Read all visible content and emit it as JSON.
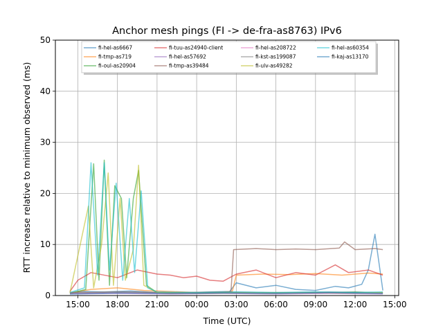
{
  "chart_data": {
    "type": "line",
    "title": "Anchor mesh pings (FI -> de-fra-as8763) IPv6",
    "xlabel": "Time (UTC)",
    "ylabel": "RTT increase relative to minimum observed (ms)",
    "xlim": [
      13.3,
      39.3
    ],
    "ylim": [
      0,
      50
    ],
    "x_ticks": [
      {
        "value": 15,
        "label": "15:00"
      },
      {
        "value": 18,
        "label": "18:00"
      },
      {
        "value": 21,
        "label": "21:00"
      },
      {
        "value": 24,
        "label": "00:00"
      },
      {
        "value": 27,
        "label": "03:00"
      },
      {
        "value": 30,
        "label": "06:00"
      },
      {
        "value": 33,
        "label": "09:00"
      },
      {
        "value": 36,
        "label": "12:00"
      },
      {
        "value": 39,
        "label": "15:00"
      }
    ],
    "y_ticks": [
      0,
      10,
      20,
      30,
      40,
      50
    ],
    "grid": true,
    "legend_position": "top",
    "series": [
      {
        "name": "fi-hel-as6667",
        "color": "#1f77b4",
        "x": [
          14.4,
          15.5,
          17.0,
          19.0,
          21.0,
          23.0,
          25.0,
          26.5,
          27.0,
          28.5,
          30.0,
          31.5,
          33.0,
          34.5,
          35.5,
          36.5,
          37.0,
          37.5,
          38.1
        ],
        "y": [
          0.6,
          0.8,
          0.7,
          0.9,
          0.6,
          0.5,
          0.7,
          0.8,
          2.5,
          1.5,
          2.0,
          1.2,
          1.0,
          1.8,
          1.5,
          2.2,
          5.0,
          12.0,
          1.0
        ]
      },
      {
        "name": "fi-tmp-as719",
        "color": "#ff7f0e",
        "x": [
          14.4,
          16.0,
          18.0,
          20.0,
          22.0,
          24.0,
          26.0,
          26.7,
          27.0,
          29.0,
          31.0,
          33.0,
          35.0,
          37.0,
          38.1
        ],
        "y": [
          0.5,
          1.2,
          1.5,
          1.0,
          0.8,
          0.6,
          0.7,
          0.8,
          4.0,
          4.2,
          4.1,
          4.3,
          4.0,
          4.4,
          4.2
        ]
      },
      {
        "name": "fi-oul-as20904",
        "color": "#2ca02c",
        "x": [
          14.4,
          15.6,
          16.2,
          16.6,
          17.0,
          17.4,
          17.8,
          18.3,
          18.7,
          19.2,
          19.6,
          20.2,
          21.0,
          24.0,
          27.0,
          30.0,
          33.0,
          36.0,
          38.1
        ],
        "y": [
          0.4,
          1.2,
          25.8,
          3.0,
          26.5,
          2.0,
          21.5,
          19.0,
          3.5,
          19.0,
          24.5,
          2.0,
          0.6,
          0.4,
          0.5,
          0.6,
          0.5,
          0.7,
          0.5
        ]
      },
      {
        "name": "fi-tuu-as24940-client",
        "color": "#d62728",
        "x": [
          14.4,
          15.0,
          16.0,
          18.0,
          19.5,
          21.0,
          22.0,
          23.0,
          24.0,
          25.0,
          26.0,
          27.0,
          28.5,
          30.0,
          31.5,
          33.0,
          34.5,
          35.5,
          37.0,
          38.1
        ],
        "y": [
          0.8,
          3.0,
          4.5,
          3.5,
          5.0,
          4.2,
          4.0,
          3.5,
          3.8,
          3.0,
          2.8,
          4.2,
          5.0,
          3.5,
          4.5,
          4.0,
          6.0,
          4.5,
          5.0,
          4.0
        ]
      },
      {
        "name": "fi-hel-as57692",
        "color": "#9467bd",
        "x": [
          14.4,
          18.0,
          22.0,
          26.0,
          30.0,
          34.0,
          38.1
        ],
        "y": [
          0.3,
          0.4,
          0.3,
          0.4,
          0.3,
          0.4,
          0.3
        ]
      },
      {
        "name": "fi-tmp-as39484",
        "color": "#8c564b",
        "x": [
          14.4,
          18.0,
          22.0,
          26.0,
          26.6,
          26.8,
          28.5,
          30.0,
          31.5,
          33.0,
          34.8,
          35.2,
          36.0,
          37.5,
          38.1
        ],
        "y": [
          0.5,
          0.7,
          0.6,
          0.5,
          0.8,
          9.0,
          9.2,
          9.0,
          9.1,
          9.0,
          9.3,
          10.5,
          9.0,
          9.2,
          9.0
        ]
      },
      {
        "name": "fi-hel-as208722",
        "color": "#e377c2",
        "x": [
          14.4,
          18.0,
          22.0,
          26.0,
          30.0,
          34.0,
          38.1
        ],
        "y": [
          0.4,
          0.5,
          0.4,
          0.5,
          0.4,
          0.5,
          0.4
        ]
      },
      {
        "name": "fi-kst-as199087",
        "color": "#7f7f7f",
        "x": [
          14.4,
          18.0,
          22.0,
          26.0,
          30.0,
          34.0,
          38.1
        ],
        "y": [
          0.6,
          0.7,
          0.6,
          0.7,
          0.6,
          0.7,
          0.6
        ]
      },
      {
        "name": "fi-ulv-as49282",
        "color": "#bcbd22",
        "x": [
          14.4,
          15.8,
          16.2,
          16.8,
          17.3,
          17.7,
          18.2,
          18.6,
          19.2,
          19.6,
          20.0,
          21.0,
          24.0,
          27.0,
          30.0,
          33.0,
          36.0,
          38.1
        ],
        "y": [
          0.5,
          17.5,
          1.5,
          10.0,
          24.0,
          2.0,
          19.0,
          3.0,
          9.0,
          25.5,
          2.0,
          0.6,
          0.5,
          0.6,
          0.5,
          0.6,
          0.5,
          0.6
        ]
      },
      {
        "name": "fi-hel-as60354",
        "color": "#17becf",
        "x": [
          14.4,
          15.5,
          16.0,
          16.5,
          17.0,
          17.4,
          17.9,
          18.4,
          18.9,
          19.3,
          19.8,
          20.3,
          21.0,
          24.0,
          27.0,
          30.0,
          33.0,
          36.0,
          38.1
        ],
        "y": [
          0.6,
          1.5,
          26.0,
          4.0,
          26.0,
          5.0,
          22.0,
          3.0,
          19.0,
          4.5,
          20.5,
          1.5,
          0.7,
          0.6,
          0.7,
          0.6,
          0.7,
          0.6,
          0.7
        ]
      },
      {
        "name": "fi-kaj-as13170",
        "color": "#1f77b4",
        "x": [
          14.4,
          18.0,
          22.0,
          26.0,
          30.0,
          34.0,
          38.1
        ],
        "y": [
          0.3,
          0.5,
          0.4,
          0.5,
          0.4,
          0.6,
          0.4
        ]
      }
    ]
  }
}
